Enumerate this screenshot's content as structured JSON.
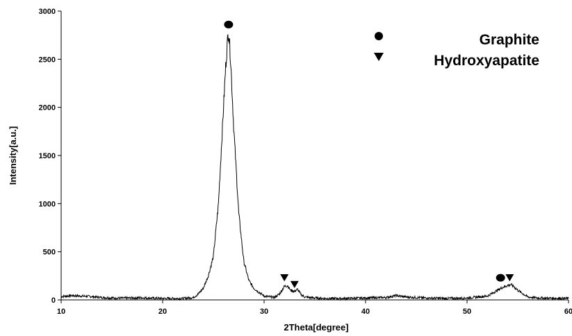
{
  "chart_data": {
    "type": "line",
    "xlabel": "2Theta[degree]",
    "ylabel": "Intensity[a.u.]",
    "xlim": [
      10,
      60
    ],
    "ylim": [
      0,
      3000
    ],
    "x_ticks": [
      10,
      20,
      30,
      40,
      50,
      60
    ],
    "y_ticks": [
      0,
      500,
      1000,
      1500,
      2000,
      2500,
      3000
    ],
    "grid": false,
    "legend_position": "top-right",
    "line_color": "#000000",
    "series": [
      {
        "x": [
          10,
          11,
          12,
          13,
          14,
          15,
          16,
          17,
          18,
          19,
          20,
          21,
          22,
          23,
          23.5,
          24,
          24.5,
          25,
          25.5,
          26,
          26.2,
          26.4,
          26.5,
          26.7,
          27,
          27.5,
          28,
          28.5,
          29,
          30,
          31,
          31.5,
          32,
          32.3,
          32.6,
          33,
          33.3,
          33.6,
          34,
          35,
          36,
          38,
          40,
          42,
          43,
          44,
          46,
          48,
          50,
          52,
          52.5,
          53,
          53.5,
          54,
          54.3,
          54.6,
          55,
          56,
          57,
          58,
          60
        ],
        "y": [
          35,
          45,
          40,
          35,
          25,
          20,
          18,
          20,
          22,
          18,
          15,
          15,
          15,
          25,
          60,
          120,
          250,
          450,
          1000,
          2000,
          2400,
          2700,
          2800,
          2500,
          1800,
          900,
          400,
          200,
          120,
          40,
          25,
          60,
          140,
          150,
          100,
          90,
          110,
          60,
          30,
          20,
          15,
          15,
          20,
          25,
          45,
          30,
          20,
          15,
          20,
          40,
          70,
          100,
          130,
          150,
          160,
          140,
          100,
          30,
          20,
          18,
          15
        ]
      }
    ],
    "legend": [
      {
        "marker": "circle",
        "label": "Graphite"
      },
      {
        "marker": "triangle-down",
        "label": "Hydroxyapatite"
      }
    ],
    "annotations": [
      {
        "marker": "circle",
        "x": 26.5,
        "y": 2860
      },
      {
        "marker": "triangle-down",
        "x": 32.0,
        "y": 230
      },
      {
        "marker": "triangle-down",
        "x": 33.0,
        "y": 160
      },
      {
        "marker": "circle",
        "x": 53.3,
        "y": 230
      },
      {
        "marker": "triangle-down",
        "x": 54.2,
        "y": 230
      }
    ]
  }
}
